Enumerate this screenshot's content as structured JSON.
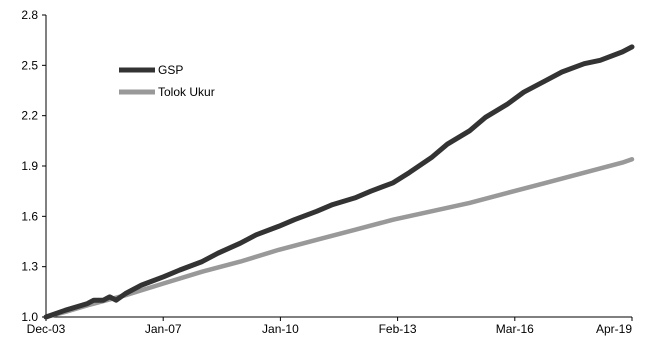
{
  "chart_data": {
    "type": "line",
    "title": "",
    "xlabel": "",
    "ylabel": "",
    "ylim": [
      1.0,
      2.8
    ],
    "yticks": [
      "1.0",
      "1.3",
      "1.6",
      "1.9",
      "2.2",
      "2.5",
      "2.8"
    ],
    "xticks": [
      "Dec-03",
      "Jan-07",
      "Jan-10",
      "Feb-13",
      "Mar-16",
      "Apr-19"
    ],
    "xrange": [
      "2003-12",
      "2019-04"
    ],
    "legend_position": "upper-left",
    "grid": false,
    "series": [
      {
        "name": "GSP",
        "color": "#333333",
        "x": [
          "2003-12",
          "2004-06",
          "2005-01",
          "2005-03",
          "2005-06",
          "2005-08",
          "2005-10",
          "2006-01",
          "2006-06",
          "2007-01",
          "2007-06",
          "2008-01",
          "2008-06",
          "2009-01",
          "2009-06",
          "2010-01",
          "2010-06",
          "2011-01",
          "2011-06",
          "2012-01",
          "2012-06",
          "2013-01",
          "2013-06",
          "2014-01",
          "2014-06",
          "2015-01",
          "2015-06",
          "2016-01",
          "2016-06",
          "2017-01",
          "2017-06",
          "2018-01",
          "2018-06",
          "2019-01",
          "2019-04"
        ],
        "values": [
          1.0,
          1.04,
          1.08,
          1.1,
          1.1,
          1.12,
          1.1,
          1.14,
          1.19,
          1.24,
          1.28,
          1.33,
          1.38,
          1.44,
          1.49,
          1.54,
          1.58,
          1.63,
          1.67,
          1.71,
          1.75,
          1.8,
          1.86,
          1.95,
          2.03,
          2.11,
          2.19,
          2.27,
          2.34,
          2.41,
          2.46,
          2.51,
          2.53,
          2.58,
          2.61
        ]
      },
      {
        "name": "Tolok Ukur",
        "color": "#999999",
        "x": [
          "2003-12",
          "2004-06",
          "2005-01",
          "2006-01",
          "2007-01",
          "2008-01",
          "2009-01",
          "2010-01",
          "2011-01",
          "2012-01",
          "2013-01",
          "2014-01",
          "2015-01",
          "2016-01",
          "2017-01",
          "2018-01",
          "2019-01",
          "2019-04"
        ],
        "values": [
          1.0,
          1.03,
          1.07,
          1.13,
          1.2,
          1.27,
          1.33,
          1.4,
          1.46,
          1.52,
          1.58,
          1.63,
          1.68,
          1.74,
          1.8,
          1.86,
          1.92,
          1.94
        ]
      }
    ]
  }
}
